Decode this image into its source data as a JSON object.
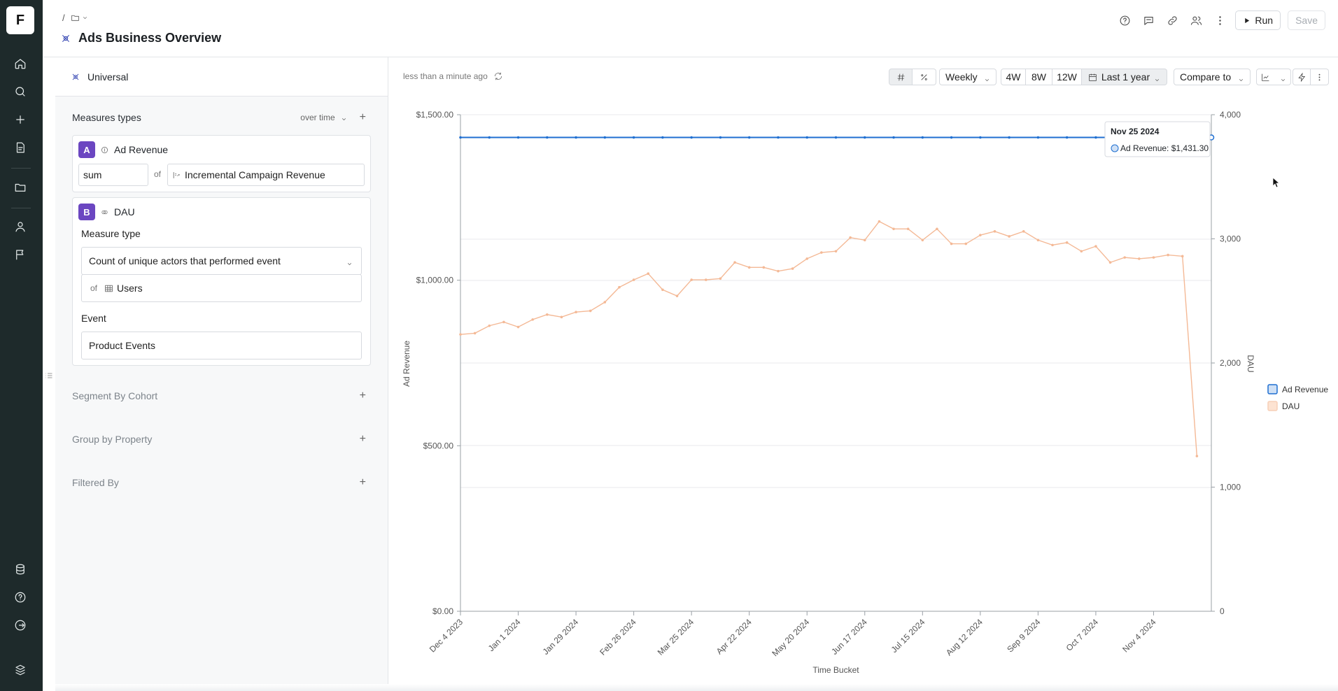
{
  "app": {
    "logo_letter": "F"
  },
  "breadcrumb": {
    "sep": "/"
  },
  "header": {
    "title": "Ads Business Overview",
    "run_label": "Run",
    "save_label": "Save"
  },
  "panel": {
    "universal": "Universal",
    "measures_title": "Measures types",
    "measures_mode": "over time",
    "measure_a": {
      "badge": "A",
      "name": "Ad Revenue",
      "agg": "sum",
      "of": "of",
      "column": "Incremental Campaign Revenue"
    },
    "measure_b": {
      "badge": "B",
      "name": "DAU",
      "type_label": "Measure type",
      "type_value": "Count of unique actors that performed event",
      "of": "of",
      "actor": "Users",
      "event_label": "Event",
      "event_value": "Product Events"
    },
    "segment": "Segment By Cohort",
    "group": "Group by Property",
    "filtered": "Filtered By"
  },
  "toolbar": {
    "updated": "less than a minute ago",
    "granularity": "Weekly",
    "r4": "4W",
    "r8": "8W",
    "r12": "12W",
    "range": "Last 1 year",
    "compare": "Compare to"
  },
  "tooltip": {
    "date": "Nov 25 2024",
    "text": "Ad Revenue: $1,431.30"
  },
  "chart_data": {
    "type": "line",
    "xlabel": "Time Bucket",
    "ylabel": "Ad Revenue",
    "y2label": "DAU",
    "ylim": [
      0,
      1500
    ],
    "y2lim": [
      0,
      4000
    ],
    "yticks": [
      "$0.00",
      "$500.00",
      "$1,000.00",
      "$1,500.00"
    ],
    "y2ticks": [
      "0",
      "1,000",
      "2,000",
      "3,000",
      "4,000"
    ],
    "xticks": [
      "Dec 4 2023",
      "Jan 1 2024",
      "Jan 29 2024",
      "Feb 26 2024",
      "Mar 25 2024",
      "Apr 22 2024",
      "May 20 2024",
      "Jun 17 2024",
      "Jul 15 2024",
      "Aug 12 2024",
      "Sep 9 2024",
      "Oct 7 2024",
      "Nov 4 2024"
    ],
    "series": [
      {
        "name": "Ad Revenue",
        "axis": "left",
        "color": "#1f6fd1",
        "values": [
          1431.3,
          1431.3,
          1431.3,
          1431.3,
          1431.3,
          1431.3,
          1431.3,
          1431.3,
          1431.3,
          1431.3,
          1431.3,
          1431.3,
          1431.3,
          1431.3,
          1431.3,
          1431.3,
          1431.3,
          1431.3,
          1431.3,
          1431.3,
          1431.3,
          1431.3,
          1431.3,
          1431.3,
          1431.3,
          1431.3,
          1431.3,
          1431.3,
          1431.3,
          1431.3,
          1431.3,
          1431.3,
          1431.3,
          1431.3,
          1431.3,
          1431.3,
          1431.3,
          1431.3,
          1431.3,
          1431.3,
          1431.3,
          1431.3,
          1431.3,
          1431.3,
          1431.3,
          1431.3,
          1431.3,
          1431.3,
          1431.3,
          1431.3,
          1431.3,
          1431.3,
          1431.3
        ]
      },
      {
        "name": "DAU",
        "axis": "right",
        "color": "#f4b996",
        "values": [
          2230,
          2240,
          2300,
          2330,
          2290,
          2350,
          2390,
          2370,
          2410,
          2420,
          2490,
          2610,
          2670,
          2720,
          2590,
          2540,
          2670,
          2670,
          2680,
          2810,
          2770,
          2770,
          2740,
          2760,
          2840,
          2890,
          2900,
          3010,
          2990,
          3140,
          3080,
          3080,
          2990,
          3080,
          2960,
          2960,
          3030,
          3060,
          3020,
          3060,
          2990,
          2950,
          2970,
          2900,
          2940,
          2810,
          2850,
          2840,
          2850,
          2870,
          2860,
          1250
        ]
      }
    ],
    "legend": [
      "Ad Revenue",
      "DAU"
    ],
    "legend_position": "right"
  }
}
